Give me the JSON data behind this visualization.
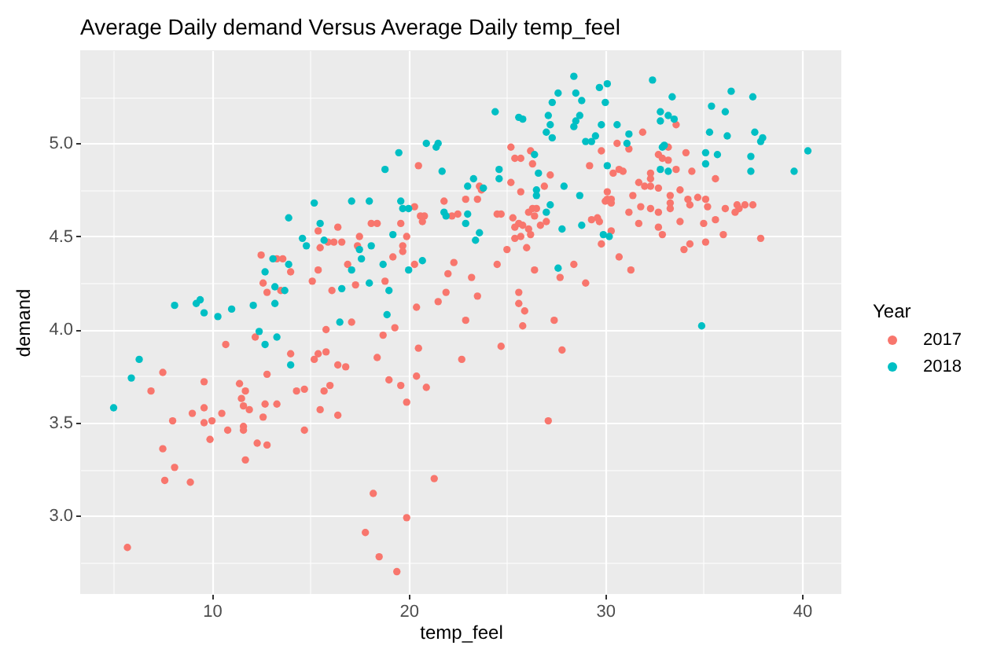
{
  "chart_data": {
    "type": "scatter",
    "title": "Average Daily demand Versus Average Daily temp_feel",
    "xlabel": "temp_feel",
    "ylabel": "demand",
    "legend_title": "Year",
    "xlim": [
      3.3,
      42.0
    ],
    "ylim": [
      2.58,
      5.5
    ],
    "xticks": [
      10,
      20,
      30,
      40
    ],
    "yticks": [
      {
        "value": 3,
        "label": "3.0"
      },
      3.5,
      {
        "value": 4,
        "label": "4.0"
      },
      4.5,
      {
        "value": 5,
        "label": "5.0"
      }
    ],
    "grid": true,
    "legend": "right",
    "marker": "circle",
    "series": [
      {
        "name": "2017",
        "color": "#f8766d",
        "x": [
          15.4,
          15.5,
          15.9,
          16.2,
          12.5,
          13.3,
          13.6,
          14.0,
          12.6,
          12.8,
          13.5,
          15.1,
          15.4,
          16.1,
          12.2,
          15.8,
          5.7,
          6.9,
          7.5,
          7.5,
          7.6,
          8.1,
          8.0,
          8.9,
          9.0,
          9.6,
          9.6,
          9.6,
          9.9,
          10.0,
          10.5,
          10.8,
          10.7,
          11.4,
          11.7,
          11.5,
          11.6,
          11.9,
          11.6,
          11.6,
          11.7,
          12.3,
          12.6,
          12.7,
          12.8,
          12.8,
          13.3,
          14.0,
          14.3,
          14.7,
          14.7,
          15.2,
          15.4,
          15.5,
          15.7,
          15.8,
          16.0,
          16.4,
          16.4,
          25.2,
          25.4,
          25.7,
          26.2,
          26.3,
          20.5,
          27.2,
          29.2,
          25.2,
          25.7,
          26.9,
          23.6,
          23.7,
          22.9,
          23.5,
          21.8,
          24.5,
          24.7,
          25.3,
          25.6,
          25.8,
          26.1,
          26.3,
          26.4,
          26.5,
          26.1,
          26.2,
          25.7,
          25.4,
          26.7,
          27.0,
          29.3,
          29.6,
          20.3,
          20.6,
          20.8,
          20.7,
          22.2,
          22.5,
          18.1,
          18.4,
          19.6,
          19.9,
          16.4,
          16.6,
          17.5,
          17.4,
          19.7,
          19.7,
          19.2,
          16.9,
          25.0,
          25.4,
          26.0,
          24.5,
          20.3,
          22.3,
          17.3,
          18.8,
          22.0,
          23.2,
          26.4,
          27.7,
          28.4,
          29.0,
          21.5,
          21.9,
          23.5,
          25.6,
          25.6,
          25.9,
          20.4,
          22.9,
          25.8,
          27.4,
          17.1,
          19.3,
          18.7,
          20.5,
          18.4,
          16.8,
          22.7,
          24.7,
          27.8,
          19.0,
          19.6,
          20.4,
          20.9,
          19.9,
          27.1,
          21.3,
          18.2,
          19.9,
          17.8,
          18.5,
          19.4,
          31.9,
          33.6,
          29.8,
          30.6,
          31.2,
          33.2,
          34.1,
          32.7,
          32.9,
          33.2,
          30.4,
          30.7,
          30.9,
          33.6,
          34.4,
          35.6,
          32.3,
          32.3,
          31.7,
          32.0,
          32.3,
          32.7,
          33.8,
          30.1,
          30.1,
          30.3,
          30.3,
          30.0,
          31.4,
          33.3,
          33.3,
          34.2,
          34.7,
          35.1,
          34.3,
          35.2,
          36.1,
          36.7,
          36.8,
          37.1,
          37.5,
          36.6,
          31.2,
          31.8,
          32.3,
          32.7,
          33.3,
          33.8,
          35.0,
          35.6,
          31.7,
          32.7,
          32.9,
          29.7,
          30.3,
          29.8,
          36.0,
          37.9,
          34.3,
          34.0,
          35.1,
          30.7,
          31.3
        ],
        "values": [
          4.53,
          4.44,
          4.47,
          4.47,
          4.4,
          4.38,
          4.38,
          4.31,
          4.25,
          4.2,
          4.21,
          4.26,
          4.32,
          4.21,
          3.96,
          4.0,
          2.83,
          3.67,
          3.77,
          3.36,
          3.19,
          3.26,
          3.51,
          3.18,
          3.55,
          3.72,
          3.58,
          3.5,
          3.41,
          3.51,
          3.55,
          3.46,
          3.92,
          3.71,
          3.67,
          3.63,
          3.59,
          3.57,
          3.48,
          3.46,
          3.3,
          3.39,
          3.53,
          3.6,
          3.76,
          3.38,
          3.6,
          3.87,
          3.67,
          3.68,
          3.46,
          3.84,
          3.87,
          3.57,
          3.67,
          3.88,
          3.7,
          3.54,
          3.81,
          4.98,
          4.92,
          4.92,
          4.96,
          4.89,
          4.88,
          4.83,
          4.88,
          4.79,
          4.74,
          4.77,
          4.77,
          4.75,
          4.7,
          4.7,
          4.69,
          4.62,
          4.62,
          4.6,
          4.57,
          4.56,
          4.63,
          4.65,
          4.61,
          4.65,
          4.54,
          4.51,
          4.5,
          4.55,
          4.56,
          4.58,
          4.59,
          4.6,
          4.66,
          4.61,
          4.61,
          4.58,
          4.61,
          4.62,
          4.57,
          4.57,
          4.57,
          4.5,
          4.55,
          4.47,
          4.5,
          4.45,
          4.45,
          4.42,
          4.39,
          4.35,
          4.43,
          4.49,
          4.44,
          4.35,
          4.35,
          4.36,
          4.24,
          4.26,
          4.3,
          4.28,
          4.32,
          4.28,
          4.35,
          4.25,
          4.15,
          4.2,
          4.18,
          4.2,
          4.14,
          4.1,
          4.12,
          4.05,
          4.02,
          4.05,
          4.04,
          4.01,
          3.97,
          3.9,
          3.85,
          3.8,
          3.84,
          3.91,
          3.89,
          3.73,
          3.7,
          3.75,
          3.69,
          3.61,
          3.51,
          3.2,
          3.12,
          2.99,
          2.91,
          2.78,
          2.7,
          5.06,
          5.1,
          4.96,
          5.0,
          4.97,
          4.98,
          4.95,
          4.94,
          4.92,
          4.91,
          4.84,
          4.86,
          4.85,
          4.86,
          4.85,
          4.81,
          4.84,
          4.81,
          4.79,
          4.77,
          4.77,
          4.76,
          4.75,
          4.74,
          4.7,
          4.7,
          4.68,
          4.69,
          4.72,
          4.72,
          4.68,
          4.7,
          4.71,
          4.7,
          4.67,
          4.66,
          4.65,
          4.67,
          4.65,
          4.67,
          4.67,
          4.63,
          4.63,
          4.66,
          4.65,
          4.63,
          4.65,
          4.58,
          4.57,
          4.59,
          4.57,
          4.55,
          4.51,
          4.58,
          4.53,
          4.46,
          4.51,
          4.49,
          4.46,
          4.43,
          4.47,
          4.39,
          4.32
        ]
      },
      {
        "name": "2018",
        "color": "#00bfc4",
        "x": [
          15.2,
          13.9,
          15.5,
          14.6,
          14.8,
          15.7,
          13.1,
          13.9,
          12.7,
          13.2,
          13.2,
          13.7,
          8.1,
          9.2,
          9.4,
          9.6,
          10.3,
          11.0,
          12.1,
          12.4,
          13.3,
          5.0,
          5.9,
          6.3,
          12.7,
          14.0,
          28.4,
          27.6,
          27.3,
          28.5,
          28.8,
          29.7,
          24.4,
          25.6,
          25.8,
          27.1,
          27.2,
          28.7,
          28.5,
          28.4,
          27.0,
          27.3,
          29.0,
          29.3,
          29.5,
          20.9,
          21.4,
          21.5,
          19.5,
          18.8,
          21.7,
          26.4,
          26.6,
          24.6,
          24.6,
          23.3,
          23.0,
          23.8,
          26.5,
          26.5,
          27.9,
          27.2,
          28.7,
          17.1,
          18.0,
          19.6,
          19.7,
          20.0,
          21.8,
          21.9,
          23.0,
          22.9,
          23.6,
          23.4,
          27.0,
          27.8,
          28.8,
          19.2,
          18.1,
          17.5,
          17.6,
          17.1,
          18.7,
          19.0,
          20.7,
          20.0,
          18.0,
          16.6,
          16.5,
          18.9,
          27.6,
          30.1,
          30.0,
          32.4,
          33.4,
          36.4,
          37.5,
          29.8,
          30.6,
          31.2,
          31.1,
          32.8,
          32.8,
          33.2,
          33.5,
          32.9,
          33.0,
          35.3,
          36.2,
          35.4,
          36.1,
          37.6,
          38.0,
          37.9,
          35.1,
          35.7,
          35.1,
          37.4,
          37.4,
          39.6,
          40.3,
          30.1,
          32.8,
          33.2,
          34.9,
          29.9,
          30.2
        ],
        "values": [
          4.68,
          4.6,
          4.57,
          4.49,
          4.45,
          4.48,
          4.38,
          4.35,
          4.31,
          4.23,
          4.14,
          4.21,
          4.13,
          4.14,
          4.16,
          4.09,
          4.07,
          4.11,
          4.13,
          3.99,
          3.96,
          3.58,
          3.74,
          3.84,
          3.92,
          3.81,
          5.36,
          5.27,
          5.22,
          5.27,
          5.23,
          5.3,
          5.17,
          5.14,
          5.13,
          5.15,
          5.1,
          5.15,
          5.12,
          5.09,
          5.06,
          5.03,
          5.01,
          5.01,
          5.04,
          5.0,
          4.98,
          5.0,
          4.95,
          4.86,
          4.85,
          4.94,
          4.84,
          4.86,
          4.81,
          4.81,
          4.77,
          4.76,
          4.75,
          4.72,
          4.77,
          4.67,
          4.72,
          4.69,
          4.69,
          4.69,
          4.65,
          4.65,
          4.63,
          4.61,
          4.62,
          4.57,
          4.52,
          4.48,
          4.63,
          4.54,
          4.56,
          4.51,
          4.45,
          4.43,
          4.38,
          4.32,
          4.35,
          4.21,
          4.37,
          4.32,
          4.25,
          4.22,
          4.04,
          4.08,
          4.33,
          5.32,
          5.22,
          5.34,
          5.25,
          5.28,
          5.25,
          5.1,
          5.1,
          5.05,
          5.0,
          5.17,
          5.12,
          5.15,
          5.13,
          4.98,
          4.99,
          5.06,
          5.04,
          5.2,
          5.17,
          5.06,
          5.03,
          5.01,
          4.95,
          4.94,
          4.89,
          4.93,
          4.85,
          4.85,
          4.96,
          4.88,
          4.86,
          4.85,
          4.02,
          4.51,
          4.5
        ]
      }
    ]
  }
}
